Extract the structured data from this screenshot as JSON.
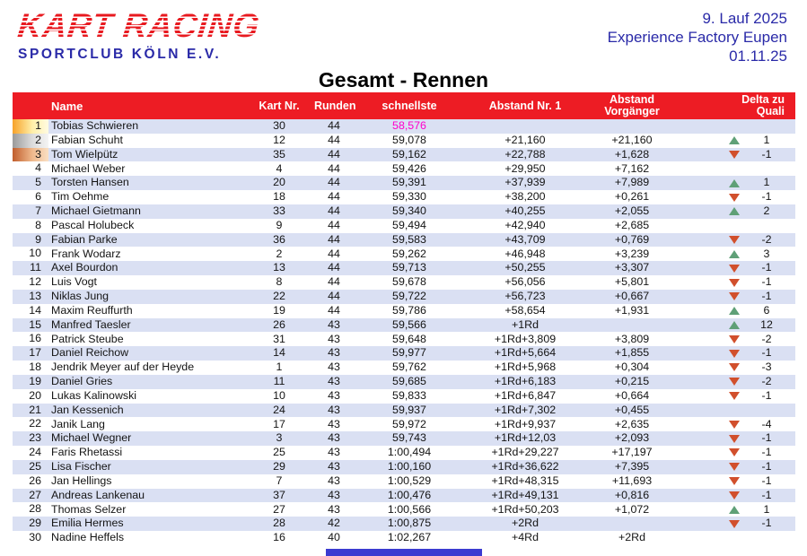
{
  "header": {
    "logo_line1": "KART RACING",
    "logo_line2": "SPORTCLUB KÖLN E.V.",
    "event_line1": "9. Lauf 2025",
    "event_line2": "Experience Factory Eupen",
    "event_line3": "01.11.25"
  },
  "title": "Gesamt - Rennen",
  "table": {
    "headers": {
      "name": "Name",
      "kart": "Kart Nr.",
      "runden": "Runden",
      "schnellste": "schnellste",
      "abstand1": "Abstand Nr. 1",
      "vorgaenger_l1": "Abstand",
      "vorgaenger_l2": "Vorgänger",
      "delta_l1": "Delta zu",
      "delta_l2": "Quali"
    },
    "rows": [
      {
        "pos": "1",
        "name": "Tobias Schwieren",
        "kart": "30",
        "runden": "44",
        "best": "58,576",
        "gap1": "",
        "gapPrev": "",
        "trend": "",
        "delta": "",
        "fastest": true
      },
      {
        "pos": "2",
        "name": "Fabian Schuht",
        "kart": "12",
        "runden": "44",
        "best": "59,078",
        "gap1": "+21,160",
        "gapPrev": "+21,160",
        "trend": "up",
        "delta": "1",
        "fastest": false
      },
      {
        "pos": "3",
        "name": "Tom Wielpütz",
        "kart": "35",
        "runden": "44",
        "best": "59,162",
        "gap1": "+22,788",
        "gapPrev": "+1,628",
        "trend": "down",
        "delta": "-1",
        "fastest": false
      },
      {
        "pos": "4",
        "name": "Michael Weber",
        "kart": "4",
        "runden": "44",
        "best": "59,426",
        "gap1": "+29,950",
        "gapPrev": "+7,162",
        "trend": "",
        "delta": "",
        "fastest": false
      },
      {
        "pos": "5",
        "name": "Torsten Hansen",
        "kart": "20",
        "runden": "44",
        "best": "59,391",
        "gap1": "+37,939",
        "gapPrev": "+7,989",
        "trend": "up",
        "delta": "1",
        "fastest": false
      },
      {
        "pos": "6",
        "name": "Tim Oehme",
        "kart": "18",
        "runden": "44",
        "best": "59,330",
        "gap1": "+38,200",
        "gapPrev": "+0,261",
        "trend": "down",
        "delta": "-1",
        "fastest": false
      },
      {
        "pos": "7",
        "name": "Michael Gietmann",
        "kart": "33",
        "runden": "44",
        "best": "59,340",
        "gap1": "+40,255",
        "gapPrev": "+2,055",
        "trend": "up",
        "delta": "2",
        "fastest": false
      },
      {
        "pos": "8",
        "name": "Pascal Holubeck",
        "kart": "9",
        "runden": "44",
        "best": "59,494",
        "gap1": "+42,940",
        "gapPrev": "+2,685",
        "trend": "",
        "delta": "",
        "fastest": false
      },
      {
        "pos": "9",
        "name": "Fabian Parke",
        "kart": "36",
        "runden": "44",
        "best": "59,583",
        "gap1": "+43,709",
        "gapPrev": "+0,769",
        "trend": "down",
        "delta": "-2",
        "fastest": false
      },
      {
        "pos": "10",
        "name": "Frank Wodarz",
        "kart": "2",
        "runden": "44",
        "best": "59,262",
        "gap1": "+46,948",
        "gapPrev": "+3,239",
        "trend": "up",
        "delta": "3",
        "fastest": false
      },
      {
        "pos": "11",
        "name": "Axel Bourdon",
        "kart": "13",
        "runden": "44",
        "best": "59,713",
        "gap1": "+50,255",
        "gapPrev": "+3,307",
        "trend": "down",
        "delta": "-1",
        "fastest": false
      },
      {
        "pos": "12",
        "name": "Luis Vogt",
        "kart": "8",
        "runden": "44",
        "best": "59,678",
        "gap1": "+56,056",
        "gapPrev": "+5,801",
        "trend": "down",
        "delta": "-1",
        "fastest": false
      },
      {
        "pos": "13",
        "name": "Niklas Jung",
        "kart": "22",
        "runden": "44",
        "best": "59,722",
        "gap1": "+56,723",
        "gapPrev": "+0,667",
        "trend": "down",
        "delta": "-1",
        "fastest": false
      },
      {
        "pos": "14",
        "name": "Maxim Reuffurth",
        "kart": "19",
        "runden": "44",
        "best": "59,786",
        "gap1": "+58,654",
        "gapPrev": "+1,931",
        "trend": "up",
        "delta": "6",
        "fastest": false
      },
      {
        "pos": "15",
        "name": "Manfred Taesler",
        "kart": "26",
        "runden": "43",
        "best": "59,566",
        "gap1": "+1Rd",
        "gapPrev": "",
        "trend": "up",
        "delta": "12",
        "fastest": false
      },
      {
        "pos": "16",
        "name": "Patrick Steube",
        "kart": "31",
        "runden": "43",
        "best": "59,648",
        "gap1": "+1Rd+3,809",
        "gapPrev": "+3,809",
        "trend": "down",
        "delta": "-2",
        "fastest": false
      },
      {
        "pos": "17",
        "name": "Daniel Reichow",
        "kart": "14",
        "runden": "43",
        "best": "59,977",
        "gap1": "+1Rd+5,664",
        "gapPrev": "+1,855",
        "trend": "down",
        "delta": "-1",
        "fastest": false
      },
      {
        "pos": "18",
        "name": "Jendrik Meyer auf der Heyde",
        "kart": "1",
        "runden": "43",
        "best": "59,762",
        "gap1": "+1Rd+5,968",
        "gapPrev": "+0,304",
        "trend": "down",
        "delta": "-3",
        "fastest": false
      },
      {
        "pos": "19",
        "name": "Daniel Gries",
        "kart": "11",
        "runden": "43",
        "best": "59,685",
        "gap1": "+1Rd+6,183",
        "gapPrev": "+0,215",
        "trend": "down",
        "delta": "-2",
        "fastest": false
      },
      {
        "pos": "20",
        "name": "Lukas Kalinowski",
        "kart": "10",
        "runden": "43",
        "best": "59,833",
        "gap1": "+1Rd+6,847",
        "gapPrev": "+0,664",
        "trend": "down",
        "delta": "-1",
        "fastest": false
      },
      {
        "pos": "21",
        "name": "Jan Kessenich",
        "kart": "24",
        "runden": "43",
        "best": "59,937",
        "gap1": "+1Rd+7,302",
        "gapPrev": "+0,455",
        "trend": "",
        "delta": "",
        "fastest": false
      },
      {
        "pos": "22",
        "name": "Janik Lang",
        "kart": "17",
        "runden": "43",
        "best": "59,972",
        "gap1": "+1Rd+9,937",
        "gapPrev": "+2,635",
        "trend": "down",
        "delta": "-4",
        "fastest": false
      },
      {
        "pos": "23",
        "name": "Michael Wegner",
        "kart": "3",
        "runden": "43",
        "best": "59,743",
        "gap1": "+1Rd+12,03",
        "gapPrev": "+2,093",
        "trend": "down",
        "delta": "-1",
        "fastest": false
      },
      {
        "pos": "24",
        "name": "Faris Rhetassi",
        "kart": "25",
        "runden": "43",
        "best": "1:00,494",
        "gap1": "+1Rd+29,227",
        "gapPrev": "+17,197",
        "trend": "down",
        "delta": "-1",
        "fastest": false
      },
      {
        "pos": "25",
        "name": "Lisa Fischer",
        "kart": "29",
        "runden": "43",
        "best": "1:00,160",
        "gap1": "+1Rd+36,622",
        "gapPrev": "+7,395",
        "trend": "down",
        "delta": "-1",
        "fastest": false
      },
      {
        "pos": "26",
        "name": "Jan Hellings",
        "kart": "7",
        "runden": "43",
        "best": "1:00,529",
        "gap1": "+1Rd+48,315",
        "gapPrev": "+11,693",
        "trend": "down",
        "delta": "-1",
        "fastest": false
      },
      {
        "pos": "27",
        "name": "Andreas Lankenau",
        "kart": "37",
        "runden": "43",
        "best": "1:00,476",
        "gap1": "+1Rd+49,131",
        "gapPrev": "+0,816",
        "trend": "down",
        "delta": "-1",
        "fastest": false
      },
      {
        "pos": "28",
        "name": "Thomas Selzer",
        "kart": "27",
        "runden": "43",
        "best": "1:00,566",
        "gap1": "+1Rd+50,203",
        "gapPrev": "+1,072",
        "trend": "up",
        "delta": "1",
        "fastest": false
      },
      {
        "pos": "29",
        "name": "Emilia Hermes",
        "kart": "28",
        "runden": "42",
        "best": "1:00,875",
        "gap1": "+2Rd",
        "gapPrev": "",
        "trend": "down",
        "delta": "-1",
        "fastest": false
      },
      {
        "pos": "30",
        "name": "Nadine Heffels",
        "kart": "16",
        "runden": "40",
        "best": "1:02,267",
        "gap1": "+4Rd",
        "gapPrev": "+2Rd",
        "trend": "",
        "delta": "",
        "fastest": false
      }
    ]
  },
  "colors": {
    "header_bg": "#ED1C24",
    "row_alt": "#DAE0F3",
    "fastest": "#FF00CC",
    "trend_up": "#5FA077",
    "trend_down": "#D14F2C",
    "blue_text": "#2A2AA8",
    "logo_red": "#E8191F",
    "footer_bar": "#3B3BD1"
  }
}
